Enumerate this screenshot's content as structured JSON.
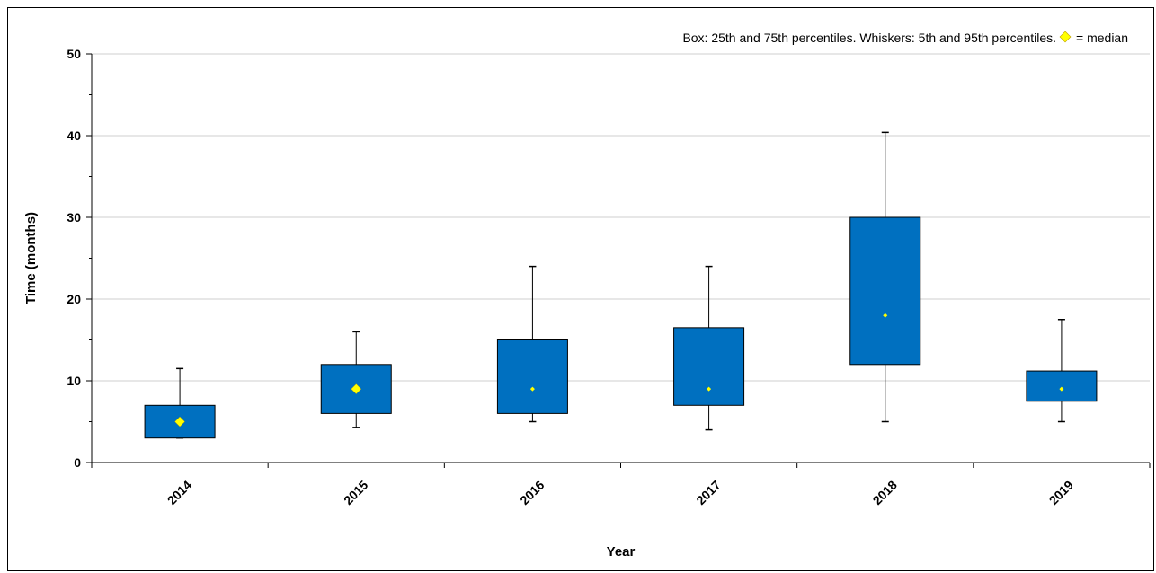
{
  "chart_data": {
    "type": "box",
    "note": {
      "prefix": "Box: 25th and 75th percentiles. Whiskers: 5th and 95th percentiles.",
      "suffix": "= median"
    },
    "xlabel": "Year",
    "ylabel": "Time  (months)",
    "ylim": [
      0,
      50
    ],
    "yticks": [
      "0",
      "10",
      "20",
      "30",
      "40",
      "50"
    ],
    "grid": true,
    "colors": {
      "box": "#0070C0",
      "median": "#FFFF00",
      "grid": "#BFBFBF"
    },
    "categories": [
      "2014",
      "2015",
      "2016",
      "2017",
      "2018",
      "2019"
    ],
    "p5": [
      3,
      4.3,
      5,
      4,
      5,
      5
    ],
    "p25": [
      3,
      6,
      6,
      7,
      12,
      7.5
    ],
    "median": [
      5,
      9,
      9,
      9,
      18,
      9
    ],
    "p75": [
      7,
      12,
      15,
      16.5,
      30,
      11.2
    ],
    "p95": [
      11.5,
      16,
      24,
      24,
      40.4,
      17.5
    ],
    "median_marker": [
      "large",
      "large",
      "small",
      "small",
      "small",
      "small"
    ]
  }
}
